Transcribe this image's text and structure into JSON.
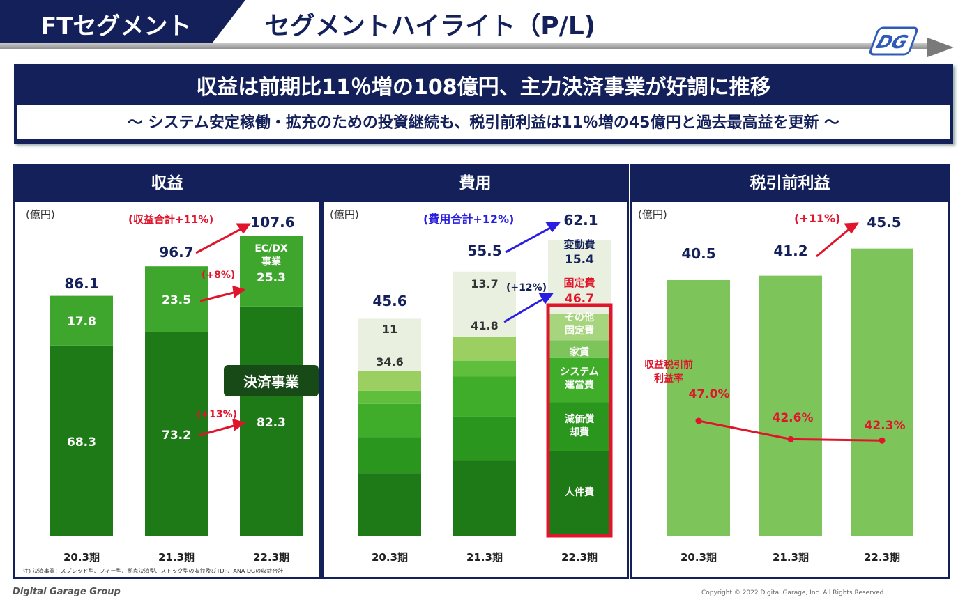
{
  "header": {
    "segment": "FTセグメント",
    "title": "セグメントハイライト（P/L)"
  },
  "message": {
    "main": "収益は前期比11％増の108億円、主力決済事業が好調に推移",
    "sub": "～ システム安定稼働・拡充のための投資継続も、税引前利益は11％増の45億円と過去最高益を更新 ～"
  },
  "panels": {
    "revenue_title": "収益",
    "cost_title": "費用",
    "profit_title": "税引前利益",
    "unit": "(億円)"
  },
  "note": "注) 決済事業：スプレッド型、フィー型、拠点決済型、ストック型の収益及びTDP、ANA DGの収益合計",
  "footer": {
    "logo": "Digital Garage Group",
    "copyright": "Copyright © 2022 Digital Garage, Inc. All Rights Reserved"
  },
  "chart_data": [
    {
      "type": "bar",
      "title": "収益",
      "categories": [
        "20.3期",
        "21.3期",
        "22.3期"
      ],
      "totals": [
        86.1,
        96.7,
        107.6
      ],
      "series": [
        {
          "name": "決済事業",
          "values": [
            68.3,
            73.2,
            82.3
          ],
          "color": "#1e7a16"
        },
        {
          "name": "EC/DX事業",
          "values": [
            17.8,
            23.5,
            25.3
          ],
          "color": "#3ea62c"
        }
      ],
      "annotations": [
        "(収益合計+11%)",
        "(+8%)",
        "(+13%)"
      ],
      "ylim": [
        0,
        115
      ]
    },
    {
      "type": "bar",
      "title": "費用",
      "categories": [
        "20.3期",
        "21.3期",
        "22.3期"
      ],
      "totals": [
        45.6,
        55.5,
        62.1
      ],
      "series": [
        {
          "name": "変動費",
          "values": [
            11.0,
            13.7,
            15.4
          ],
          "color": "#eaf0e0"
        },
        {
          "name": "固定費",
          "values": [
            34.6,
            41.8,
            46.7
          ]
        }
      ],
      "fixed_breakdown_labels": [
        "その他固定費",
        "家賃",
        "システム運営費",
        "減価償却費",
        "人件費"
      ],
      "annotations": [
        "(費用合計+12%)",
        "(+12%)"
      ],
      "ylim": [
        0,
        66
      ]
    },
    {
      "type": "bar",
      "title": "税引前利益",
      "categories": [
        "20.3期",
        "21.3期",
        "22.3期"
      ],
      "values": [
        40.5,
        41.2,
        45.5
      ],
      "color": "#7dc45b",
      "margin_label": "収益税引前利益率",
      "margin_values": [
        47.0,
        42.6,
        42.3
      ],
      "margin_display": [
        "47.0%",
        "42.6%",
        "42.3%"
      ],
      "annotations": [
        "(+11%)"
      ],
      "ylim": [
        0,
        48
      ]
    }
  ]
}
